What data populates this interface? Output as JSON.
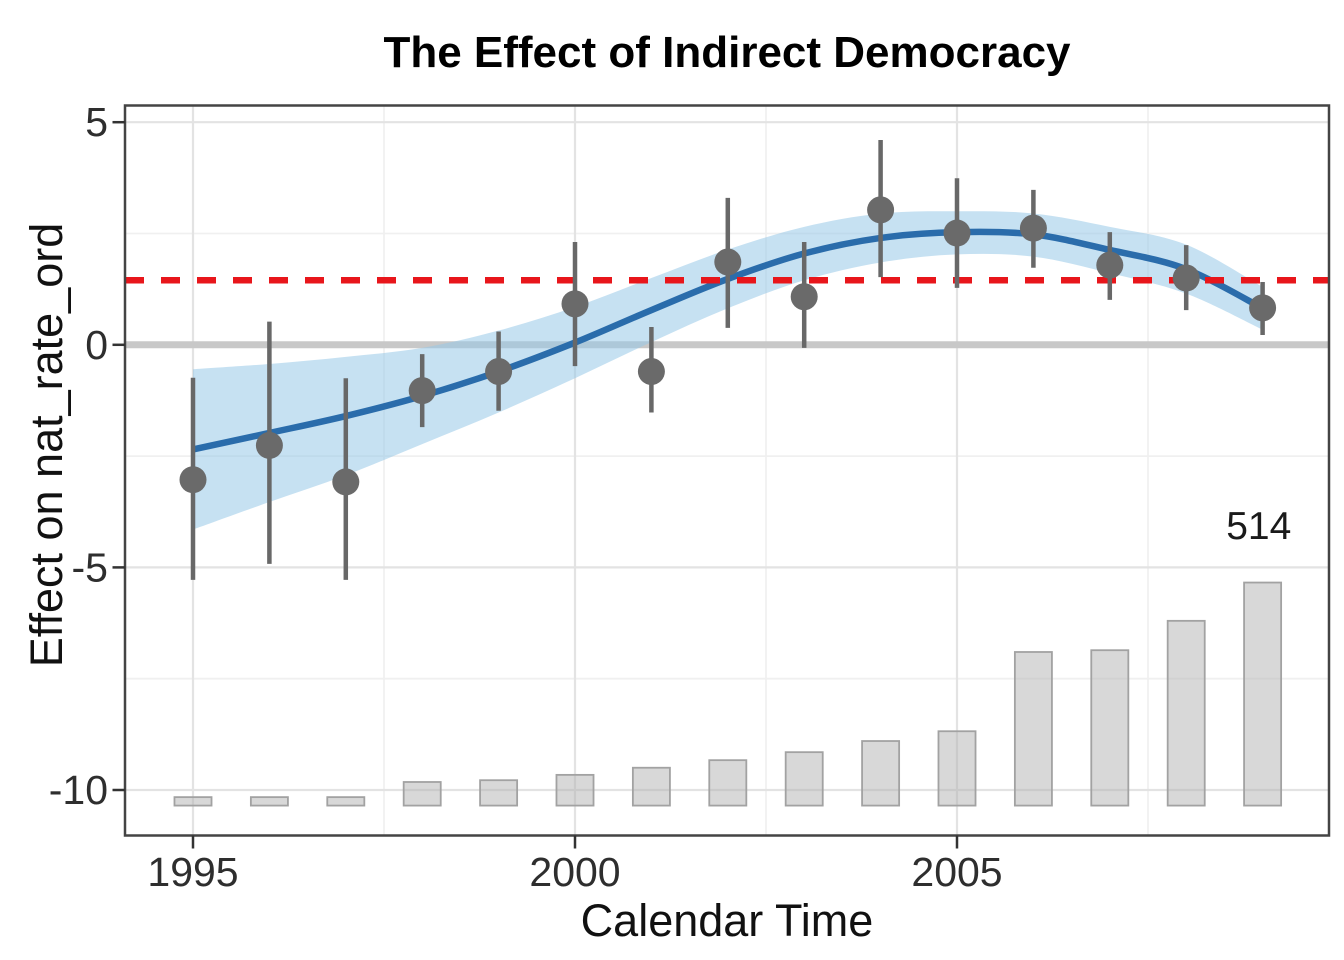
{
  "title": "The Effect of Indirect Democracy",
  "axes": {
    "x": {
      "label": "Calendar Time",
      "ticks": [
        1995,
        2000,
        2005
      ],
      "minor_gridlines": [
        1997.5,
        2002.5,
        2007.5
      ],
      "domain": [
        1994.11,
        2009.87
      ]
    },
    "y": {
      "label": "Effect on nat_rate_ord",
      "ticks": [
        5,
        0,
        -5,
        -10
      ],
      "minor_gridlines": [
        2.5,
        -2.5,
        -7.5
      ],
      "domain": [
        -11.02,
        5.37
      ]
    }
  },
  "chart_data": {
    "type": "scatter",
    "subtype": "event-study estimates with loess smooth, confidence band and observation-count bars",
    "title": "The Effect of Indirect Democracy",
    "xlabel": "Calendar Time",
    "ylabel": "Effect on nat_rate_ord",
    "grid": "on",
    "legend": "none",
    "years": [
      1995,
      1996,
      1997,
      1998,
      1999,
      2000,
      2001,
      2002,
      2003,
      2004,
      2005,
      2006,
      2007,
      2008,
      2009
    ],
    "point_estimates": [
      -3.03,
      -2.26,
      -3.08,
      -1.03,
      -0.6,
      0.92,
      -0.6,
      1.86,
      1.08,
      3.03,
      2.51,
      2.62,
      1.79,
      1.5,
      0.83
    ],
    "ci_low": [
      -5.28,
      -4.92,
      -5.28,
      -1.85,
      -1.48,
      -0.48,
      -1.52,
      0.38,
      -0.07,
      1.52,
      1.28,
      1.73,
      1.01,
      0.78,
      0.22
    ],
    "ci_high": [
      -0.74,
      0.52,
      -0.75,
      -0.21,
      0.3,
      2.31,
      0.4,
      3.3,
      2.31,
      4.6,
      3.74,
      3.48,
      2.53,
      2.24,
      1.41
    ],
    "smooth_line": [
      -2.35,
      -1.98,
      -1.6,
      -1.15,
      -0.6,
      0.05,
      0.78,
      1.48,
      2.05,
      2.4,
      2.53,
      2.48,
      2.13,
      1.7,
      0.82
    ],
    "band_low": [
      -4.15,
      -3.53,
      -2.93,
      -2.23,
      -1.52,
      -0.75,
      0.06,
      0.82,
      1.45,
      1.85,
      2.03,
      1.98,
      1.61,
      1.15,
      0.34
    ],
    "band_high": [
      -0.55,
      -0.43,
      -0.27,
      -0.07,
      0.32,
      0.85,
      1.5,
      2.14,
      2.65,
      2.95,
      3.0,
      2.95,
      2.65,
      2.25,
      1.3
    ],
    "bar_tops_axis_units": [
      -10.16,
      -10.16,
      -10.16,
      -9.82,
      -9.78,
      -9.66,
      -9.5,
      -9.33,
      -9.15,
      -8.9,
      -8.68,
      -6.9,
      -6.86,
      -6.2,
      -5.34
    ],
    "bar_baseline_axis_units": -10.35,
    "bar_width_years": 0.485,
    "max_count_annotation": {
      "text": "514",
      "x_year": 2008.95,
      "y_value": -4.36
    },
    "reference_line": {
      "y": 1.45,
      "style": "dashed"
    },
    "zero_line": {
      "y": 0
    }
  },
  "colors": {
    "smooth_line": "#2a6cab",
    "confidence_band": "rgba(151,200,232,0.55)",
    "point": "#6a6a6a",
    "error_bar": "#686868",
    "ref_line": "#e8161b",
    "zero_line": "#c8c8c8",
    "bar_fill": "rgba(178,178,178,0.5)",
    "bar_border": "#a2a2a2",
    "grid_major": "#e3e3e3",
    "grid_minor": "#f0f0f0",
    "panel_border": "#444444",
    "tick_mark": "#333333",
    "axis_text": "#2e2e2e",
    "annotation_text": "#1a1a1a"
  }
}
